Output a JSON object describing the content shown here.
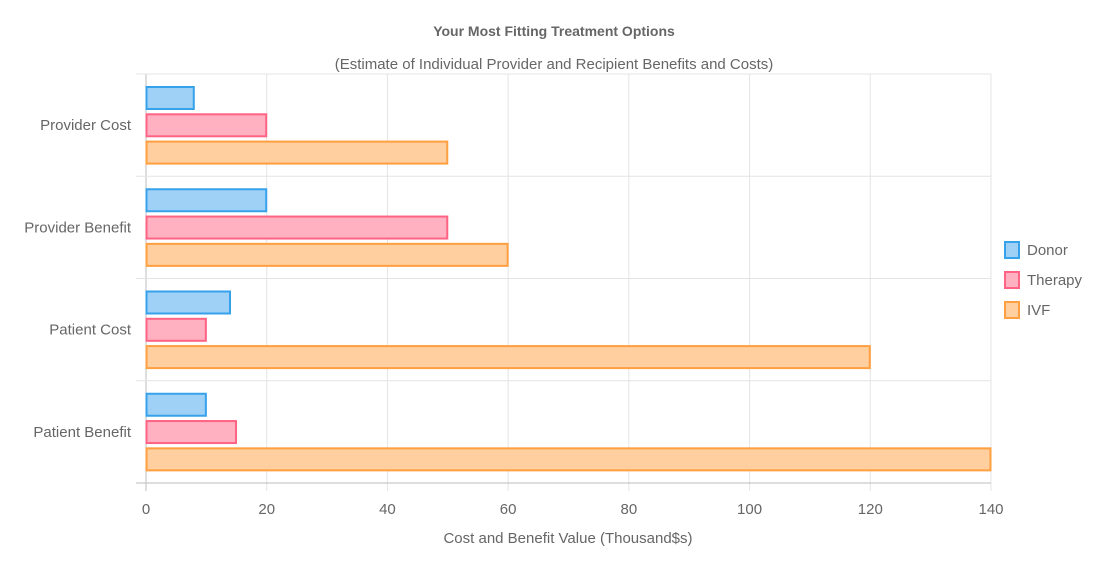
{
  "chart_data": {
    "type": "bar",
    "orientation": "horizontal",
    "title": "Your Most Fitting Treatment Options",
    "subtitle": "(Estimate of Individual Provider and Recipient Benefits and Costs)",
    "xlabel": "Cost and Benefit Value (Thousand$s)",
    "ylabel": "",
    "xlim": [
      0,
      140
    ],
    "x_ticks": [
      0,
      20,
      40,
      60,
      80,
      100,
      120,
      140
    ],
    "categories": [
      "Provider Cost",
      "Provider Benefit",
      "Patient Cost",
      "Patient Benefit"
    ],
    "series": [
      {
        "name": "Donor",
        "values": [
          8,
          20,
          14,
          10
        ],
        "fill": "#9fd0f5",
        "stroke": "#36a2eb"
      },
      {
        "name": "Therapy",
        "values": [
          20,
          50,
          10,
          15
        ],
        "fill": "#ffb0c1",
        "stroke": "#ff6384"
      },
      {
        "name": "IVF",
        "values": [
          50,
          60,
          120,
          140
        ],
        "fill": "#ffcf9f",
        "stroke": "#ff9f40"
      }
    ],
    "grid": true,
    "legend_position": "right"
  }
}
